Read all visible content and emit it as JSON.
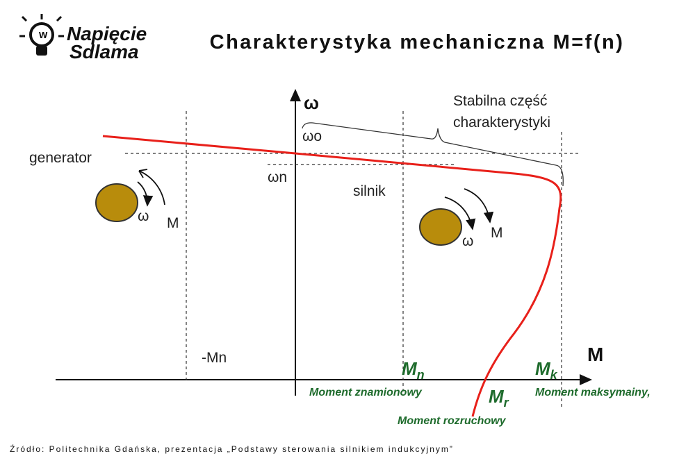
{
  "logo": {
    "line1": "Napięcie",
    "line2": "Sdlama"
  },
  "title": "Charakterystyka mechaniczna M=f(n)",
  "diagram": {
    "axis_omega": "ω",
    "axis_m": "M",
    "stable_part": [
      "Stabilna część",
      "charakterystyki"
    ],
    "omega_0": "ωo",
    "omega_n": "ωn",
    "generator": {
      "label": "generator",
      "omega": "ω",
      "moment": "M"
    },
    "motor": {
      "label": "silnik",
      "omega": "ω",
      "moment": "M"
    },
    "minus_mn": "-Mn",
    "mn": {
      "main": "M",
      "sub": "n",
      "caption": "Moment znamionowy"
    },
    "mk": {
      "main": "M",
      "sub": "k",
      "caption": "Moment maksymainy,"
    },
    "mr": {
      "main": "M",
      "sub": "r",
      "caption": "Moment rozruchowy"
    }
  },
  "footer": "Źródło: Politechnika Gdańska, prezentacja „Podstawy sterowania silnikiem indukcyjnym”"
}
